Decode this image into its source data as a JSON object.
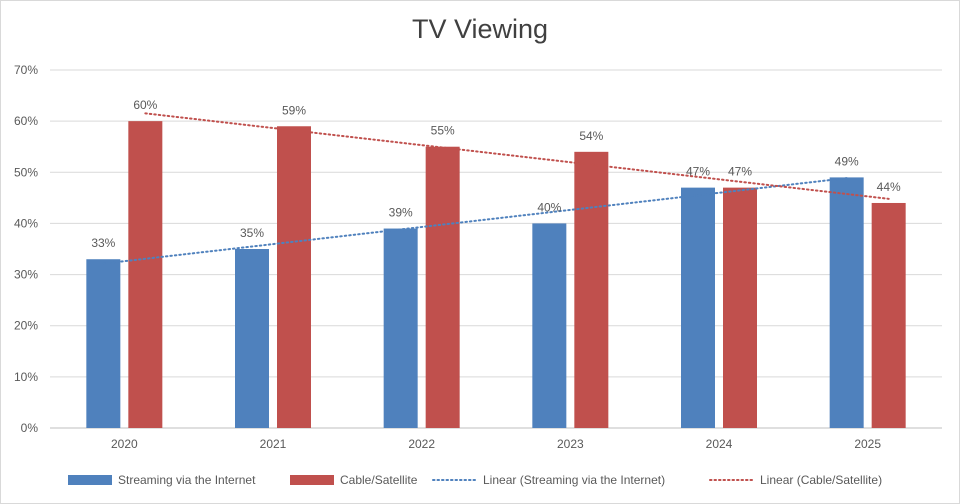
{
  "chart_data": {
    "type": "bar",
    "title": "TV Viewing",
    "xlabel": "",
    "ylabel": "",
    "categories": [
      "2020",
      "2021",
      "2022",
      "2023",
      "2024",
      "2025"
    ],
    "series": [
      {
        "name": "Streaming via the Internet",
        "values": [
          33,
          35,
          39,
          40,
          47,
          49
        ],
        "color": "#4f81bd",
        "labels": [
          "33%",
          "35%",
          "39%",
          "40%",
          "47%",
          "49%"
        ]
      },
      {
        "name": "Cable/Satellite",
        "values": [
          60,
          59,
          55,
          54,
          47,
          44
        ],
        "color": "#c0504d",
        "labels": [
          "60%",
          "59%",
          "55%",
          "54%",
          "47%",
          "44%"
        ]
      }
    ],
    "trendlines": [
      {
        "name": "Linear (Streaming via the Internet)",
        "series": "Streaming via the Internet",
        "type": "linear",
        "style": "dotted",
        "color": "#4f81bd"
      },
      {
        "name": "Linear (Cable/Satellite)",
        "series": "Cable/Satellite",
        "type": "linear",
        "style": "dotted",
        "color": "#c0504d"
      }
    ],
    "ylim": [
      0,
      70
    ],
    "yticks": [
      "0%",
      "10%",
      "20%",
      "30%",
      "40%",
      "50%",
      "60%",
      "70%"
    ],
    "grid": true,
    "legend": "bottom"
  }
}
